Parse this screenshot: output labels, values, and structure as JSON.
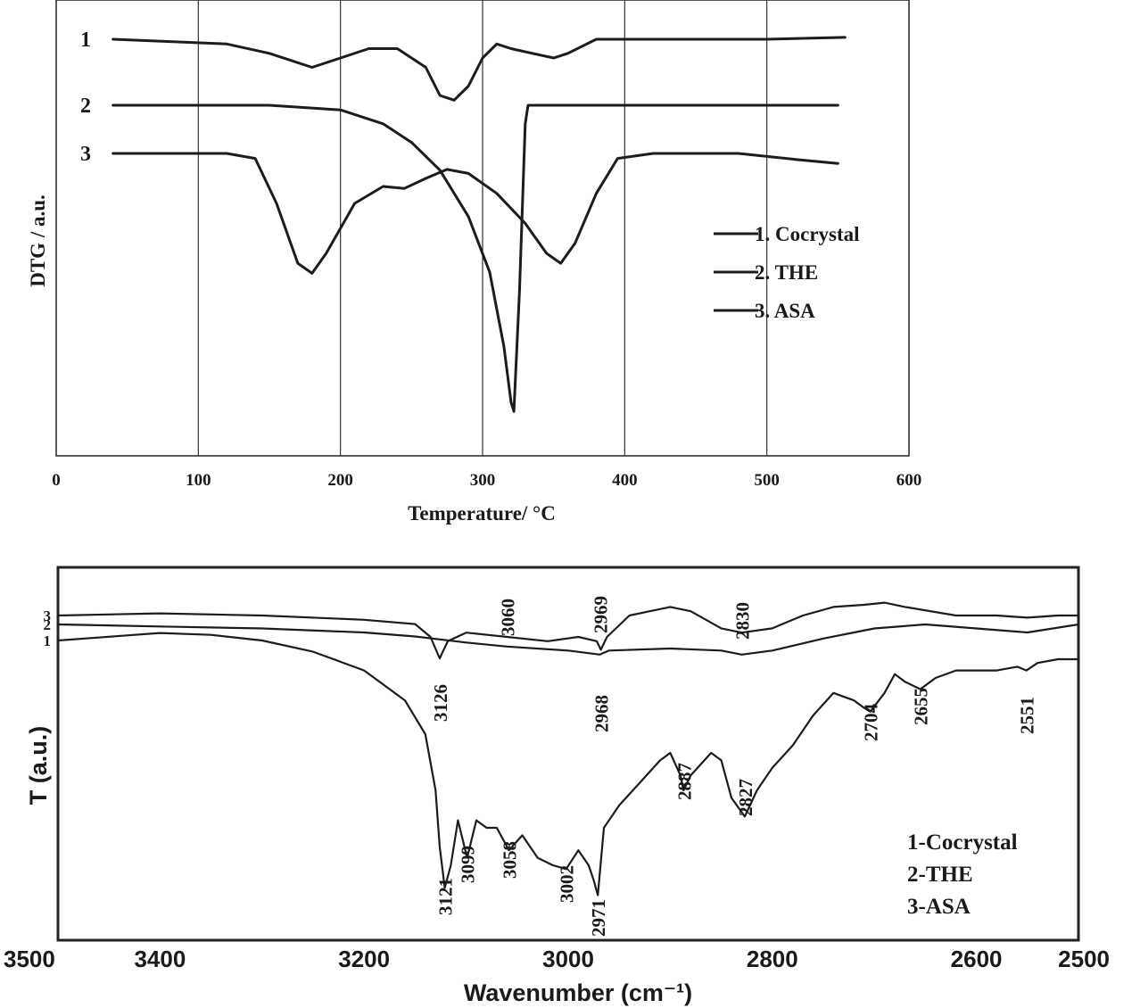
{
  "chart_data": [
    {
      "type": "line",
      "title": "",
      "xlabel": "Temperature/ °C",
      "ylabel": "DTG / a.u.",
      "xlim": [
        0,
        600
      ],
      "xticks": [
        "0",
        "100",
        "200",
        "300",
        "400",
        "500",
        "600"
      ],
      "grid": "vertical",
      "legend_position": "right",
      "curve_labels": [
        "1",
        "2",
        "3"
      ],
      "series": [
        {
          "name": "1. Cocrystal",
          "id": "1",
          "x": [
            40,
            120,
            150,
            180,
            200,
            220,
            240,
            260,
            270,
            280,
            290,
            300,
            310,
            320,
            335,
            350,
            360,
            380,
            400,
            450,
            500,
            555
          ],
          "y": [
            0,
            -0.5,
            -1.5,
            -3,
            -2,
            -1,
            -1,
            -3,
            -6,
            -6.5,
            -5,
            -2,
            -0.5,
            -1,
            -1.5,
            -2,
            -1.5,
            0,
            0,
            0,
            0,
            0.2
          ]
        },
        {
          "name": "2. THE",
          "id": "2",
          "x": [
            40,
            150,
            200,
            230,
            250,
            270,
            290,
            305,
            315,
            320,
            322,
            326,
            330,
            332,
            350,
            400,
            450,
            500,
            550
          ],
          "y": [
            0,
            0,
            -0.5,
            -2,
            -4,
            -7,
            -12,
            -18,
            -26,
            -32,
            -33,
            -20,
            -2,
            0,
            0,
            0,
            0,
            0,
            0
          ]
        },
        {
          "name": "3. ASA",
          "id": "3",
          "x": [
            40,
            120,
            140,
            155,
            170,
            180,
            190,
            210,
            230,
            245,
            260,
            275,
            290,
            310,
            330,
            345,
            355,
            365,
            380,
            395,
            420,
            480,
            520,
            550
          ],
          "y": [
            0,
            0,
            -0.5,
            -5,
            -11,
            -12,
            -10,
            -5,
            -3.3,
            -3.5,
            -2.5,
            -1.6,
            -2,
            -4,
            -7,
            -10,
            -11,
            -9,
            -4,
            -0.5,
            0,
            0,
            -0.6,
            -1
          ]
        }
      ]
    },
    {
      "type": "line",
      "title": "",
      "xlabel": "Wavenumber (cm⁻¹)",
      "ylabel": "T (a.u.)",
      "xlim": [
        3500,
        2500
      ],
      "xticks": [
        "3500",
        "3400",
        "3200",
        "3000",
        "2800",
        "2600",
        "2500"
      ],
      "legend_position": "bottom-right",
      "curve_labels": [
        "3",
        "2",
        "1"
      ],
      "series": [
        {
          "name": "1-Cocrystal",
          "id": "1",
          "x": [
            3500,
            3450,
            3400,
            3350,
            3300,
            3250,
            3200,
            3160,
            3140,
            3130,
            3126,
            3121,
            3115,
            3108,
            3099,
            3090,
            3080,
            3070,
            3058,
            3045,
            3030,
            3015,
            3002,
            2990,
            2980,
            2975,
            2971,
            2965,
            2950,
            2930,
            2910,
            2900,
            2890,
            2887,
            2880,
            2860,
            2850,
            2840,
            2827,
            2815,
            2800,
            2780,
            2760,
            2740,
            2720,
            2710,
            2704,
            2690,
            2680,
            2670,
            2655,
            2640,
            2620,
            2600,
            2580,
            2560,
            2551,
            2540,
            2520,
            2500
          ],
          "y": [
            0,
            1,
            2,
            1.5,
            0,
            -3,
            -8,
            -16,
            -25,
            -40,
            -55,
            -66,
            -60,
            -48,
            -58,
            -48,
            -50,
            -50,
            -56,
            -52,
            -58,
            -60,
            -61,
            -56,
            -60,
            -64,
            -68,
            -50,
            -44,
            -38,
            -32,
            -30,
            -36,
            -40,
            -36,
            -30,
            -32,
            -42,
            -47,
            -40,
            -34,
            -28,
            -20,
            -14,
            -16,
            -18,
            -19,
            -14,
            -9,
            -11,
            -13,
            -10,
            -8,
            -8,
            -8,
            -7,
            -8,
            -6,
            -5,
            -5
          ]
        },
        {
          "name": "2-THE",
          "id": "2",
          "x": [
            3500,
            3400,
            3300,
            3200,
            3150,
            3100,
            3060,
            3000,
            2969,
            2960,
            2900,
            2850,
            2830,
            2800,
            2750,
            2700,
            2650,
            2600,
            2550,
            2500
          ],
          "y": [
            0,
            -0.5,
            -1,
            -2,
            -3,
            -4.5,
            -5.5,
            -6.5,
            -7.5,
            -6.5,
            -6,
            -6.5,
            -7.5,
            -6.5,
            -3.5,
            -1,
            0,
            -1,
            -2,
            0
          ]
        },
        {
          "name": "3-ASA",
          "id": "3",
          "x": [
            3500,
            3400,
            3300,
            3200,
            3150,
            3135,
            3126,
            3118,
            3100,
            3060,
            3020,
            2990,
            2972,
            2968,
            2962,
            2940,
            2920,
            2900,
            2880,
            2850,
            2830,
            2800,
            2770,
            2740,
            2710,
            2690,
            2670,
            2620,
            2580,
            2550,
            2520,
            2500
          ],
          "y": [
            0,
            0.5,
            0,
            -1,
            -2,
            -5,
            -10,
            -6,
            -4,
            -5,
            -6,
            -5,
            -6,
            -8,
            -5,
            0,
            1,
            2,
            1,
            -3,
            -4,
            -3,
            0,
            2,
            2.5,
            3,
            2,
            0,
            0,
            -0.5,
            0,
            0
          ]
        }
      ],
      "peak_labels": [
        "3060",
        "2969",
        "2830",
        "3126",
        "2968",
        "2704",
        "2655",
        "2551",
        "2887",
        "2827",
        "3121",
        "3099",
        "3058",
        "3002",
        "2971"
      ]
    }
  ]
}
